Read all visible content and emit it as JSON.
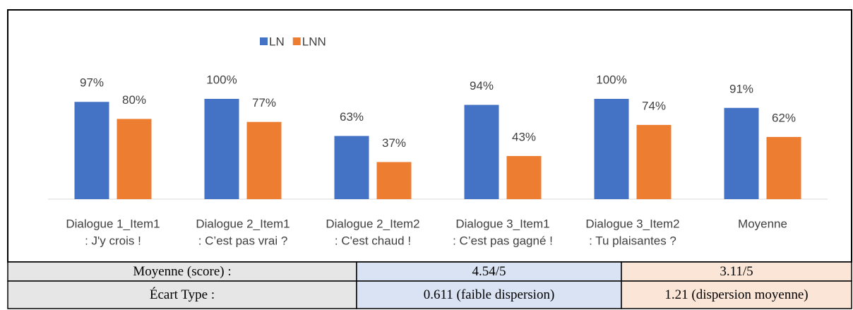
{
  "chart_data": {
    "type": "bar",
    "categories": [
      [
        "Dialogue 1_Item1",
        ": J'y crois !"
      ],
      [
        "Dialogue 2_Item1",
        ": C’est pas vrai ?"
      ],
      [
        "Dialogue 2_Item2",
        ": C'est chaud !"
      ],
      [
        "Dialogue 3_Item1",
        ": C’est pas gagné !"
      ],
      [
        "Dialogue 3_Item2",
        ": Tu plaisantes ?"
      ],
      [
        "Moyenne"
      ]
    ],
    "series": [
      {
        "name": "LN",
        "color": "#4472c4",
        "values": [
          97,
          100,
          63,
          94,
          100,
          91
        ],
        "value_labels": [
          "97%",
          "100%",
          "63%",
          "94%",
          "100%",
          "91%"
        ]
      },
      {
        "name": "LNN",
        "color": "#ed7d31",
        "values": [
          80,
          77,
          37,
          43,
          74,
          62
        ],
        "value_labels": [
          "80%",
          "77%",
          "37%",
          "43%",
          "74%",
          "62%"
        ]
      }
    ],
    "ylim": [
      0,
      100
    ],
    "legend": "top"
  },
  "table": {
    "rows": [
      [
        "Moyenne (score) :",
        "4.54/5",
        "3.11/5"
      ],
      [
        "Écart Type :",
        "0.611 (faible dispersion)",
        "1.21 (dispersion moyenne)"
      ]
    ]
  }
}
